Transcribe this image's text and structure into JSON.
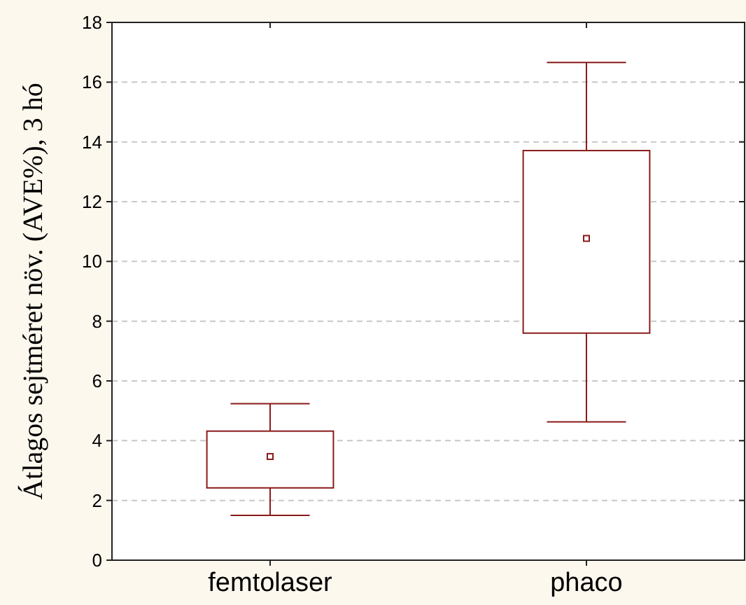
{
  "chart_data": {
    "type": "box",
    "ylabel": "Átlagos sejtméret növ. (AVE%), 3 hó",
    "categories": [
      "femtolaser",
      "phaco"
    ],
    "boxes": [
      {
        "low": 1.5,
        "q1": 2.42,
        "median": 3.47,
        "q3": 4.32,
        "high": 5.24
      },
      {
        "low": 4.63,
        "q1": 7.6,
        "median": 10.77,
        "q3": 13.71,
        "high": 16.66
      }
    ],
    "color": "#8b1a1a",
    "ylim": [
      0,
      18
    ],
    "yticks": [
      0,
      2,
      4,
      6,
      8,
      10,
      12,
      14,
      16,
      18
    ],
    "grid": "y"
  }
}
